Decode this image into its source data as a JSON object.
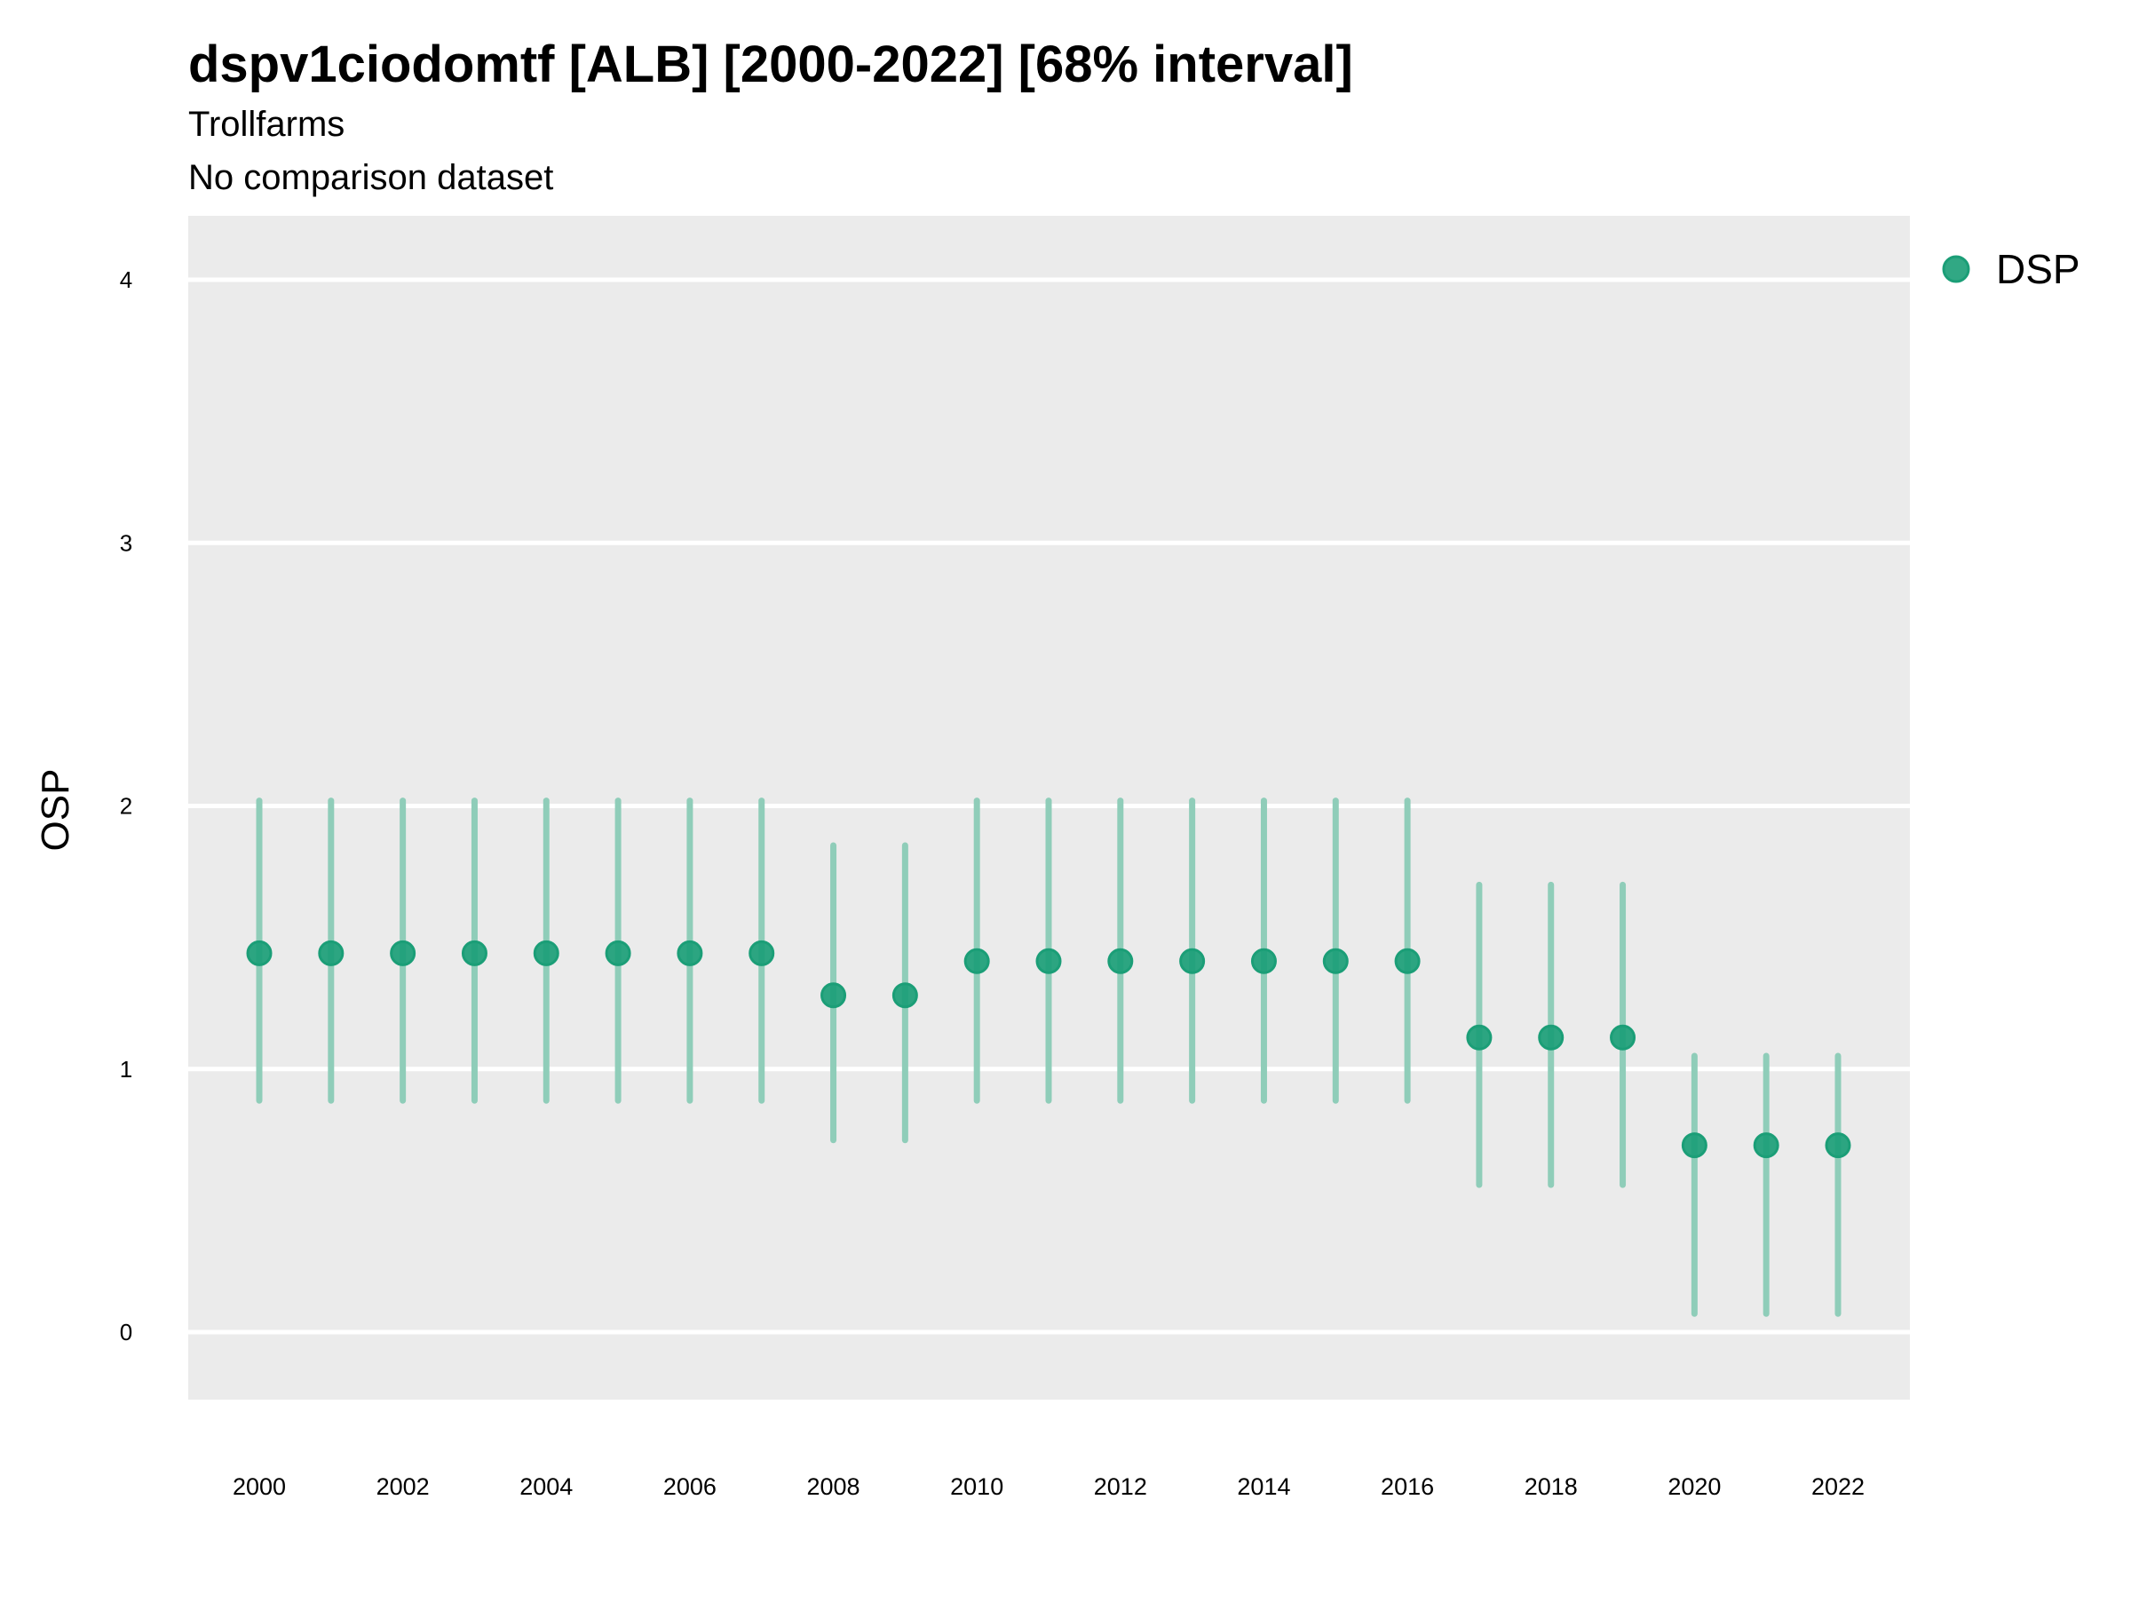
{
  "chart_data": {
    "type": "scatter",
    "title": "dspv1ciodomtf [ALB] [2000-2022] [68% interval]",
    "subtitle": "Trollfarms",
    "caption_line": "No comparison dataset",
    "xlabel": "",
    "ylabel": "OSP",
    "ylim": [
      -0.25,
      4.25
    ],
    "xlim": [
      1999,
      2023
    ],
    "yticks": [
      "0",
      "1",
      "2",
      "3",
      "4"
    ],
    "xticks": [
      "2000",
      "2002",
      "2004",
      "2006",
      "2008",
      "2010",
      "2012",
      "2014",
      "2016",
      "2018",
      "2020",
      "2022"
    ],
    "grid": true,
    "legend": {
      "placement": "top-right",
      "entries": [
        "DSP"
      ]
    },
    "colors": {
      "point": "#1b9e77",
      "interval": "#8fcdb9",
      "panel": "#ebebeb",
      "grid": "#ffffff"
    },
    "series": [
      {
        "name": "DSP",
        "x": [
          2000,
          2001,
          2002,
          2003,
          2004,
          2005,
          2006,
          2007,
          2008,
          2009,
          2010,
          2011,
          2012,
          2013,
          2014,
          2015,
          2016,
          2017,
          2018,
          2019,
          2020,
          2021,
          2022
        ],
        "y": [
          1.44,
          1.44,
          1.44,
          1.44,
          1.44,
          1.44,
          1.44,
          1.44,
          1.28,
          1.28,
          1.41,
          1.41,
          1.41,
          1.41,
          1.41,
          1.41,
          1.41,
          1.12,
          1.12,
          1.12,
          0.71,
          0.71,
          0.71
        ],
        "lower": [
          0.88,
          0.88,
          0.88,
          0.88,
          0.88,
          0.88,
          0.88,
          0.88,
          0.73,
          0.73,
          0.88,
          0.88,
          0.88,
          0.88,
          0.88,
          0.88,
          0.88,
          0.56,
          0.56,
          0.56,
          0.07,
          0.07,
          0.07
        ],
        "upper": [
          2.02,
          2.02,
          2.02,
          2.02,
          2.02,
          2.02,
          2.02,
          2.02,
          1.85,
          1.85,
          2.02,
          2.02,
          2.02,
          2.02,
          2.02,
          2.02,
          2.02,
          1.7,
          1.7,
          1.7,
          1.05,
          1.05,
          1.05
        ]
      }
    ]
  }
}
